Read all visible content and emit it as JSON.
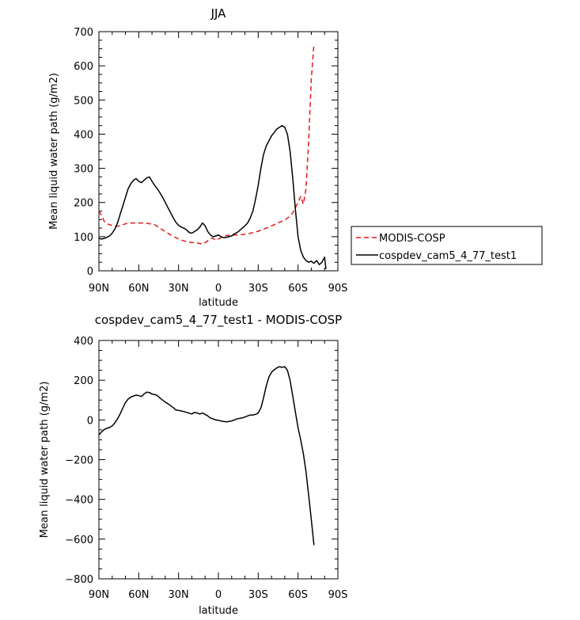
{
  "chart_data": [
    {
      "type": "line",
      "title": "JJA",
      "xlabel": "latitude",
      "ylabel": "Mean liquid water path (g/m2)",
      "xlim": [
        90,
        -90
      ],
      "ylim": [
        0,
        700
      ],
      "x_tick_labels": [
        "90N",
        "60N",
        "30N",
        "0",
        "30S",
        "60S",
        "90S"
      ],
      "y_tick_labels": [
        "0",
        "100",
        "200",
        "300",
        "400",
        "500",
        "600",
        "700"
      ],
      "legend_position": "right",
      "series": [
        {
          "name": "MODIS-COSP",
          "color": "#e31a1c",
          "dash": "dashed",
          "x": [
            90,
            88,
            86,
            84,
            82,
            80,
            76,
            72,
            68,
            64,
            60,
            56,
            52,
            48,
            44,
            40,
            36,
            32,
            28,
            24,
            20,
            17,
            14,
            12,
            10,
            8,
            6,
            4,
            2,
            0,
            -2,
            -4,
            -6,
            -10,
            -14,
            -18,
            -22,
            -26,
            -30,
            -34,
            -38,
            -42,
            -46,
            -50,
            -54,
            -56,
            -58,
            -60,
            -62,
            -64,
            -66,
            -68,
            -70,
            -72
          ],
          "y": [
            175,
            162,
            145,
            138,
            135,
            133,
            130,
            135,
            140,
            140,
            140,
            140,
            138,
            135,
            125,
            115,
            105,
            97,
            90,
            85,
            83,
            82,
            80,
            78,
            82,
            88,
            95,
            95,
            90,
            93,
            97,
            102,
            103,
            105,
            105,
            106,
            108,
            112,
            116,
            122,
            128,
            135,
            142,
            148,
            160,
            170,
            185,
            200,
            218,
            195,
            240,
            380,
            560,
            665
          ]
        },
        {
          "name": "cospdev_cam5_4_77_test1",
          "color": "#000000",
          "dash": "solid",
          "x": [
            90,
            88,
            86,
            84,
            82,
            80,
            78,
            76,
            74,
            72,
            70,
            68,
            66,
            64,
            62,
            60,
            58,
            56,
            54,
            52,
            50,
            48,
            46,
            44,
            42,
            40,
            38,
            36,
            34,
            32,
            30,
            28,
            26,
            24,
            22,
            20,
            18,
            16,
            14,
            12,
            10,
            8,
            6,
            4,
            2,
            0,
            -2,
            -4,
            -6,
            -8,
            -10,
            -12,
            -14,
            -16,
            -18,
            -20,
            -22,
            -24,
            -26,
            -28,
            -30,
            -32,
            -34,
            -36,
            -38,
            -40,
            -42,
            -44,
            -46,
            -48,
            -50,
            -52,
            -54,
            -56,
            -58,
            -60,
            -62,
            -64,
            -66,
            -68,
            -70,
            -72,
            -74,
            -76,
            -78,
            -80,
            -81
          ],
          "y": [
            95,
            93,
            95,
            98,
            102,
            110,
            122,
            140,
            165,
            190,
            215,
            240,
            255,
            265,
            270,
            262,
            258,
            265,
            272,
            275,
            262,
            250,
            240,
            228,
            215,
            200,
            185,
            170,
            155,
            142,
            133,
            128,
            125,
            120,
            112,
            110,
            115,
            120,
            128,
            140,
            132,
            115,
            105,
            100,
            102,
            105,
            100,
            97,
            98,
            100,
            102,
            108,
            112,
            118,
            125,
            132,
            140,
            155,
            175,
            210,
            250,
            300,
            340,
            365,
            380,
            395,
            405,
            415,
            420,
            425,
            420,
            400,
            350,
            270,
            180,
            100,
            60,
            40,
            30,
            25,
            28,
            22,
            30,
            18,
            25,
            40,
            5
          ]
        }
      ]
    },
    {
      "type": "line",
      "title": "cospdev_cam5_4_77_test1 - MODIS-COSP",
      "xlabel": "latitude",
      "ylabel": "Mean liquid water path (g/m2)",
      "xlim": [
        90,
        -90
      ],
      "ylim": [
        -800,
        400
      ],
      "x_tick_labels": [
        "90N",
        "60N",
        "30N",
        "0",
        "30S",
        "60S",
        "90S"
      ],
      "y_tick_labels": [
        "−800",
        "−600",
        "−400",
        "−200",
        "0",
        "200",
        "400"
      ],
      "series": [
        {
          "name": "",
          "color": "#000000",
          "dash": "solid",
          "x": [
            90,
            88,
            86,
            84,
            82,
            80,
            78,
            76,
            74,
            72,
            70,
            68,
            66,
            64,
            62,
            60,
            58,
            56,
            54,
            52,
            50,
            48,
            46,
            44,
            42,
            40,
            38,
            36,
            34,
            32,
            30,
            28,
            26,
            24,
            22,
            20,
            18,
            16,
            14,
            12,
            10,
            8,
            6,
            4,
            2,
            0,
            -2,
            -4,
            -6,
            -8,
            -10,
            -12,
            -14,
            -16,
            -18,
            -20,
            -22,
            -24,
            -26,
            -28,
            -30,
            -32,
            -34,
            -36,
            -38,
            -40,
            -42,
            -44,
            -46,
            -48,
            -50,
            -52,
            -54,
            -56,
            -58,
            -60,
            -62,
            -64,
            -66,
            -68,
            -70,
            -72
          ],
          "y": [
            -75,
            -60,
            -48,
            -42,
            -38,
            -30,
            -15,
            5,
            30,
            60,
            88,
            105,
            115,
            120,
            125,
            122,
            118,
            130,
            140,
            138,
            130,
            128,
            122,
            110,
            100,
            90,
            82,
            72,
            62,
            50,
            48,
            45,
            42,
            38,
            34,
            30,
            38,
            35,
            30,
            35,
            28,
            20,
            10,
            5,
            0,
            -2,
            -5,
            -8,
            -10,
            -8,
            -5,
            0,
            5,
            8,
            10,
            15,
            20,
            25,
            25,
            28,
            35,
            60,
            110,
            170,
            215,
            240,
            252,
            262,
            268,
            265,
            268,
            250,
            200,
            120,
            40,
            -40,
            -100,
            -170,
            -260,
            -380,
            -500,
            -630
          ]
        }
      ]
    }
  ]
}
